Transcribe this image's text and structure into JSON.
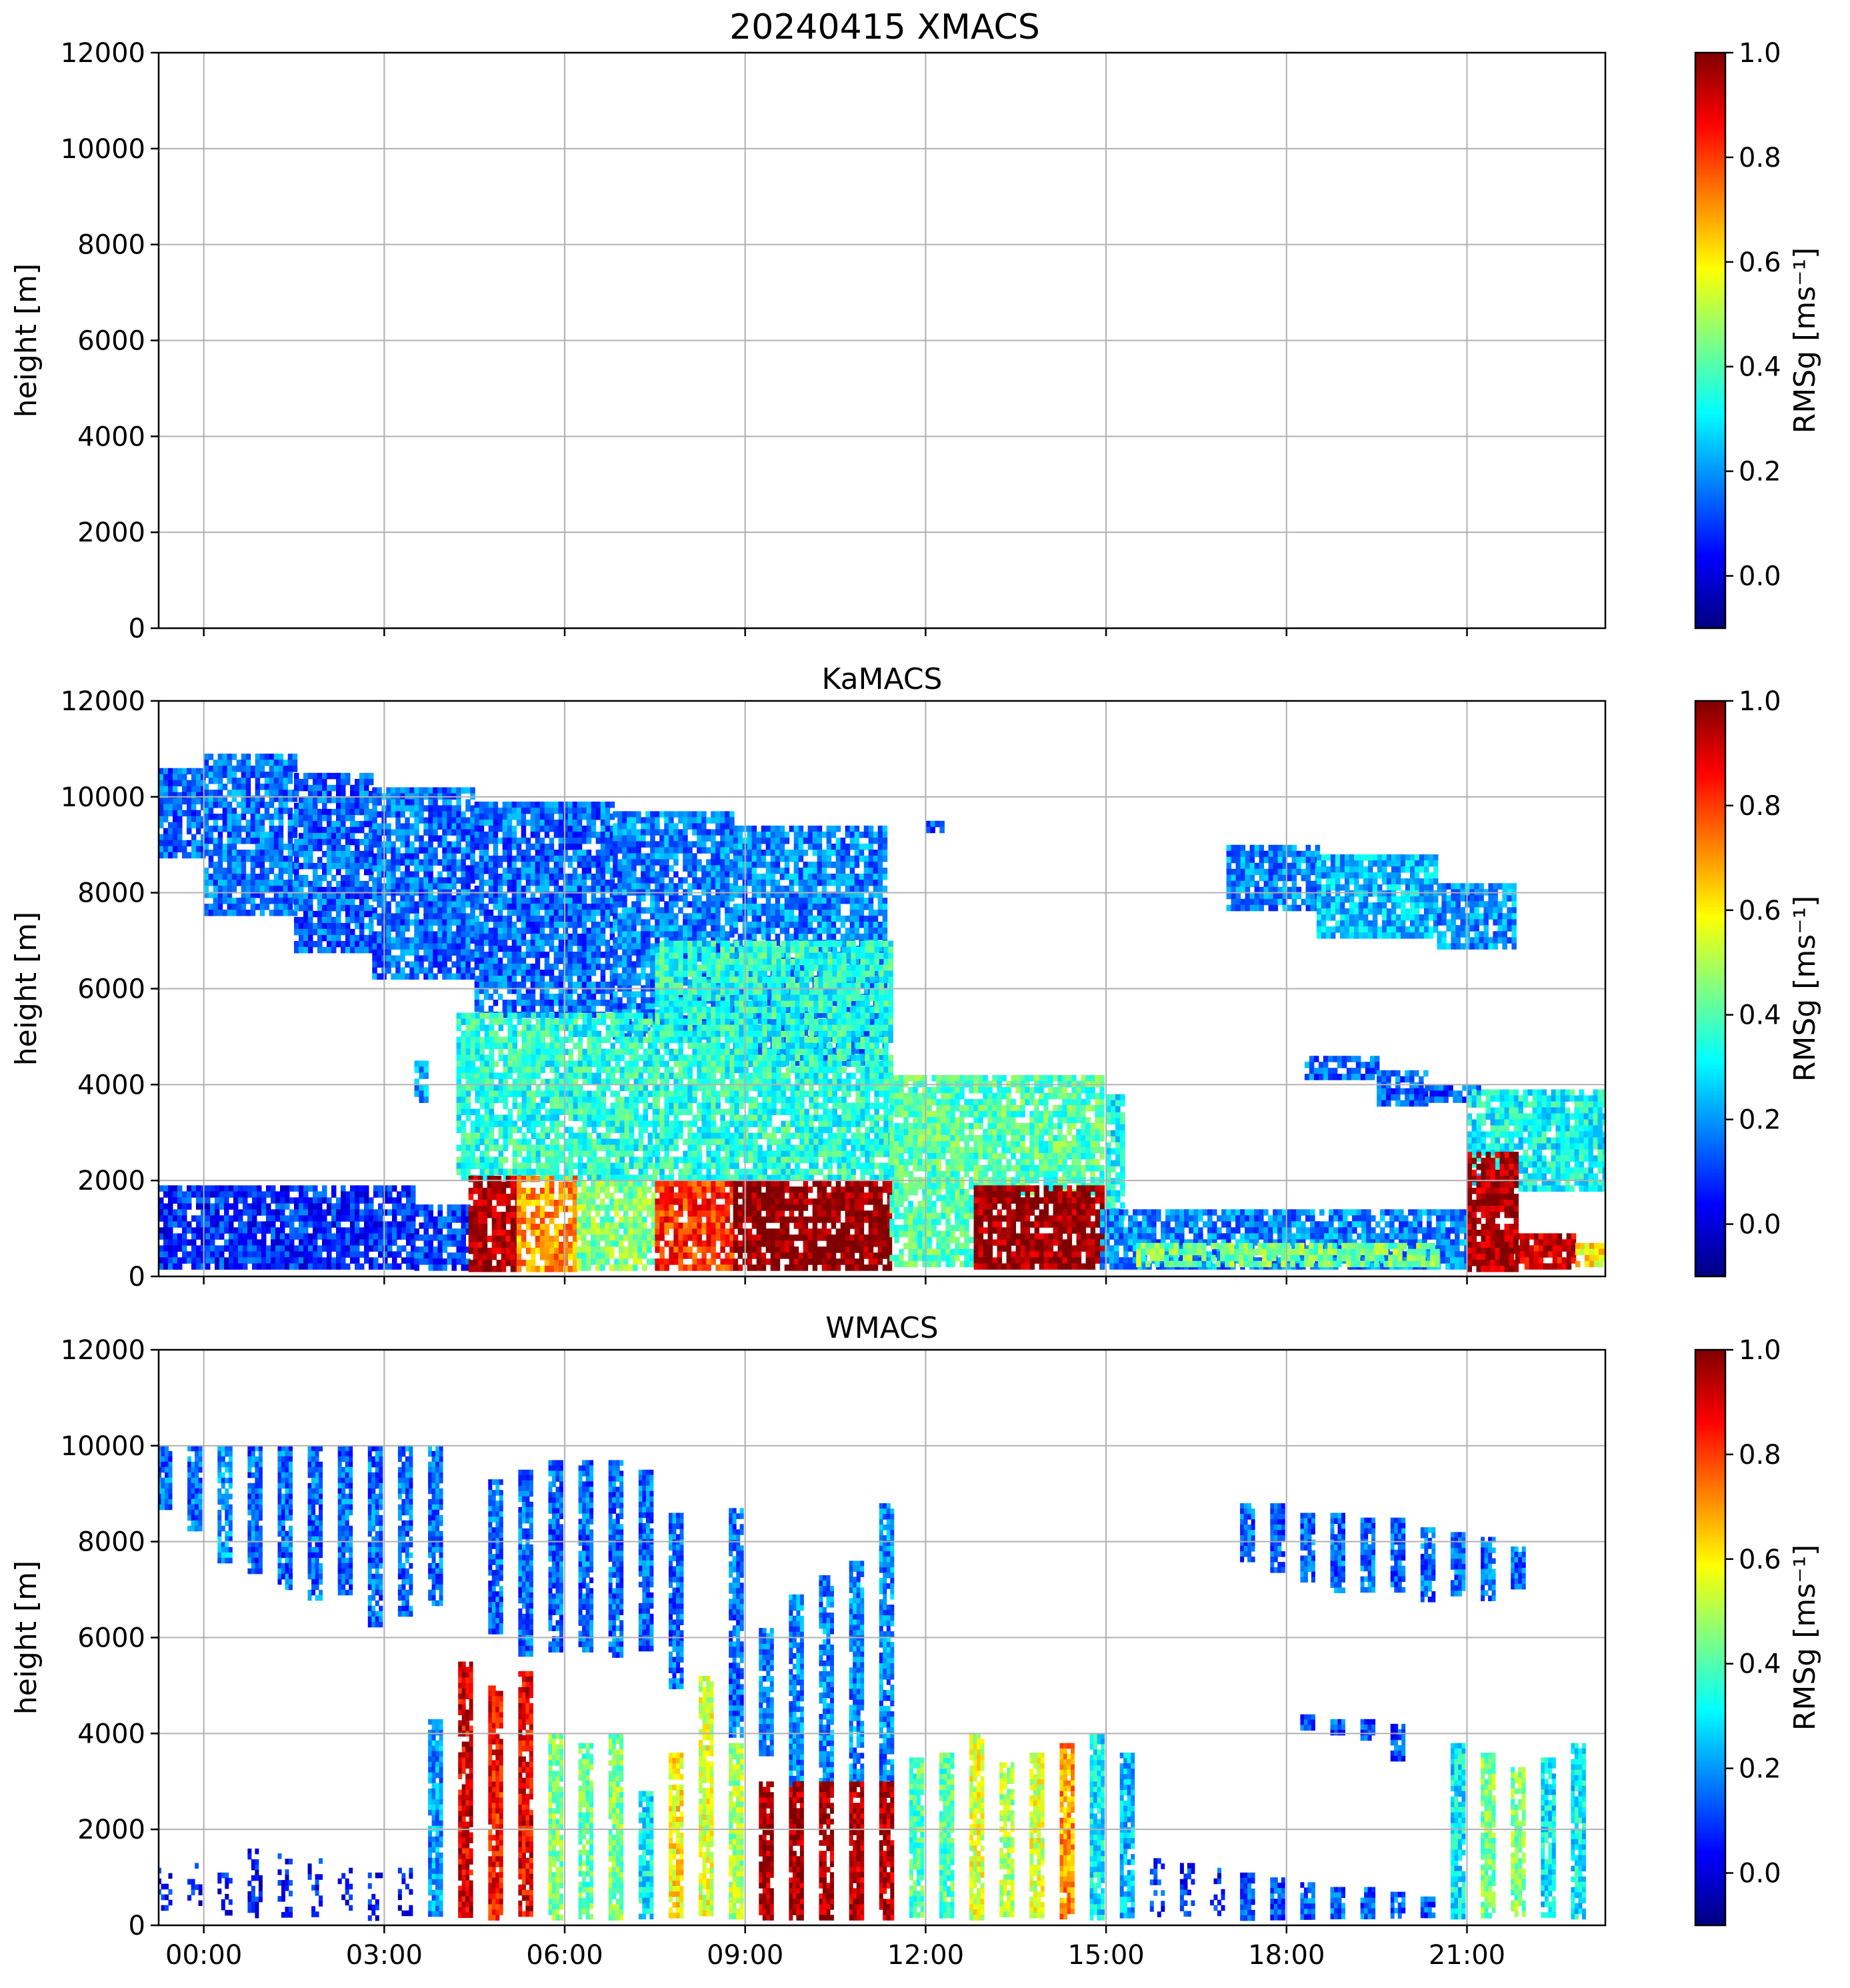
{
  "figure": {
    "title": "20240415 XMACS",
    "x_tick_labels": [
      "00:00",
      "03:00",
      "06:00",
      "09:00",
      "12:00",
      "15:00",
      "18:00",
      "21:00"
    ]
  },
  "colormap": {
    "name": "jet",
    "stops": [
      "#00007f",
      "#0000ff",
      "#0080ff",
      "#00ffff",
      "#80ff80",
      "#ffff00",
      "#ff8000",
      "#ff0000",
      "#7f0000"
    ]
  },
  "chart_data": [
    {
      "type": "heatmap",
      "title": "",
      "xlabel": "",
      "ylabel": "height [m]",
      "ylim": [
        0,
        12000
      ],
      "y_ticks": [
        0,
        2000,
        4000,
        6000,
        8000,
        10000,
        12000
      ],
      "x_ticks_hours": [
        0,
        3,
        6,
        9,
        12,
        15,
        18,
        21
      ],
      "xlim_hours": [
        -0.75,
        23.3
      ],
      "grid": true,
      "colorbar": {
        "label": "RMSg [ms⁻¹]",
        "range": [
          -0.1,
          1.0
        ],
        "ticks": [
          "0.0",
          "0.2",
          "0.4",
          "0.6",
          "0.8",
          "1.0"
        ]
      },
      "regions": []
    },
    {
      "type": "heatmap",
      "title": "KaMACS",
      "xlabel": "",
      "ylabel": "height [m]",
      "ylim": [
        0,
        12000
      ],
      "y_ticks": [
        0,
        2000,
        4000,
        6000,
        8000,
        10000,
        12000
      ],
      "x_ticks_hours": [
        0,
        3,
        6,
        9,
        12,
        15,
        18,
        21
      ],
      "xlim_hours": [
        -0.75,
        23.3
      ],
      "grid": true,
      "colorbar": {
        "label": "RMSg [ms⁻¹]",
        "range": [
          -0.1,
          1.0
        ],
        "ticks": [
          "0.0",
          "0.2",
          "0.4",
          "0.6",
          "0.8",
          "1.0"
        ]
      },
      "regions": [
        {
          "t0": -0.75,
          "t1": 0.0,
          "h0": 8800,
          "h1": 10600,
          "v": 0.14
        },
        {
          "t0": 0.0,
          "t1": 1.5,
          "h0": 7600,
          "h1": 10900,
          "v": 0.16
        },
        {
          "t0": 1.5,
          "t1": 2.8,
          "h0": 6800,
          "h1": 10500,
          "v": 0.14
        },
        {
          "t0": 2.8,
          "t1": 4.5,
          "h0": 6200,
          "h1": 10200,
          "v": 0.15
        },
        {
          "t0": 4.5,
          "t1": 6.8,
          "h0": 5500,
          "h1": 9900,
          "v": 0.15
        },
        {
          "t0": 6.8,
          "t1": 8.8,
          "h0": 5000,
          "h1": 9700,
          "v": 0.17
        },
        {
          "t0": 8.8,
          "t1": 11.3,
          "h0": 4500,
          "h1": 9400,
          "v": 0.18
        },
        {
          "t0": 12.0,
          "t1": 12.3,
          "h0": 9300,
          "h1": 9500,
          "v": 0.12
        },
        {
          "t0": 17.0,
          "t1": 18.5,
          "h0": 7700,
          "h1": 9000,
          "v": 0.18
        },
        {
          "t0": 18.5,
          "t1": 20.5,
          "h0": 7100,
          "h1": 8800,
          "v": 0.24
        },
        {
          "t0": 20.5,
          "t1": 21.8,
          "h0": 6900,
          "h1": 8200,
          "v": 0.2
        },
        {
          "t0": 18.3,
          "t1": 19.5,
          "h0": 4100,
          "h1": 4600,
          "v": 0.14
        },
        {
          "t0": 19.5,
          "t1": 20.3,
          "h0": 3600,
          "h1": 4300,
          "v": 0.14
        },
        {
          "t0": 20.3,
          "t1": 21.2,
          "h0": 3700,
          "h1": 4000,
          "v": 0.12
        },
        {
          "t0": 3.5,
          "t1": 3.7,
          "h0": 3700,
          "h1": 4500,
          "v": 0.2
        },
        {
          "t0": 4.2,
          "t1": 7.5,
          "h0": 2000,
          "h1": 5500,
          "v": 0.35
        },
        {
          "t0": 7.5,
          "t1": 11.4,
          "h0": 2000,
          "h1": 7000,
          "v": 0.35
        },
        {
          "t0": 11.4,
          "t1": 14.9,
          "h0": 1800,
          "h1": 4200,
          "v": 0.4
        },
        {
          "t0": 15.0,
          "t1": 15.3,
          "h0": 1200,
          "h1": 3800,
          "v": 0.32
        },
        {
          "t0": 21.0,
          "t1": 23.3,
          "h0": 1800,
          "h1": 3900,
          "v": 0.32
        },
        {
          "t0": -0.75,
          "t1": 3.5,
          "h0": 200,
          "h1": 1900,
          "v": 0.08
        },
        {
          "t0": 3.5,
          "t1": 4.4,
          "h0": 200,
          "h1": 1500,
          "v": 0.1
        },
        {
          "t0": 4.4,
          "t1": 5.2,
          "h0": 200,
          "h1": 2100,
          "v": 0.95
        },
        {
          "t0": 5.2,
          "t1": 6.2,
          "h0": 200,
          "h1": 2100,
          "v": 0.7
        },
        {
          "t0": 6.2,
          "t1": 7.5,
          "h0": 200,
          "h1": 2000,
          "v": 0.45
        },
        {
          "t0": 7.5,
          "t1": 8.8,
          "h0": 200,
          "h1": 2000,
          "v": 0.82
        },
        {
          "t0": 8.8,
          "t1": 11.4,
          "h0": 200,
          "h1": 2000,
          "v": 1.0
        },
        {
          "t0": 11.4,
          "t1": 12.8,
          "h0": 200,
          "h1": 1700,
          "v": 0.4
        },
        {
          "t0": 12.8,
          "t1": 14.9,
          "h0": 200,
          "h1": 1900,
          "v": 0.98
        },
        {
          "t0": 14.9,
          "t1": 21.0,
          "h0": 200,
          "h1": 1400,
          "v": 0.18
        },
        {
          "t0": 15.5,
          "t1": 20.5,
          "h0": 300,
          "h1": 700,
          "v": 0.45
        },
        {
          "t0": 21.0,
          "t1": 21.8,
          "h0": 200,
          "h1": 2600,
          "v": 0.96
        },
        {
          "t0": 21.8,
          "t1": 22.8,
          "h0": 200,
          "h1": 900,
          "v": 0.9
        },
        {
          "t0": 22.8,
          "t1": 23.3,
          "h0": 200,
          "h1": 700,
          "v": 0.6
        }
      ]
    },
    {
      "type": "heatmap",
      "title": "WMACS",
      "xlabel": "",
      "ylabel": "height [m]",
      "ylim": [
        0,
        12000
      ],
      "y_ticks": [
        0,
        2000,
        4000,
        6000,
        8000,
        10000,
        12000
      ],
      "x_ticks_hours": [
        0,
        3,
        6,
        9,
        12,
        15,
        18,
        21
      ],
      "xlim_hours": [
        -0.75,
        23.3
      ],
      "grid": true,
      "colorbar": {
        "label": "RMSg [ms⁻¹]",
        "range": [
          -0.1,
          1.0
        ],
        "ticks": [
          "0.0",
          "0.2",
          "0.4",
          "0.6",
          "0.8",
          "1.0"
        ]
      },
      "scans": [
        {
          "t": -0.65,
          "top": 10000,
          "bottom": 8700,
          "v": 0.15
        },
        {
          "t": -0.15,
          "top": 10000,
          "bottom": 8300,
          "v": 0.15
        },
        {
          "t": 0.35,
          "top": 10000,
          "bottom": 7600,
          "v": 0.2
        },
        {
          "t": 0.85,
          "top": 10000,
          "bottom": 7400,
          "v": 0.15
        },
        {
          "t": 1.35,
          "top": 10000,
          "bottom": 7100,
          "v": 0.15
        },
        {
          "t": 1.85,
          "top": 10000,
          "bottom": 6800,
          "v": 0.15
        },
        {
          "t": 2.35,
          "top": 10000,
          "bottom": 6900,
          "v": 0.15
        },
        {
          "t": 2.85,
          "top": 10000,
          "bottom": 6300,
          "v": 0.15
        },
        {
          "t": 3.35,
          "top": 10000,
          "bottom": 6500,
          "v": 0.15
        },
        {
          "t": 3.85,
          "top": 10000,
          "bottom": 6700,
          "v": 0.15
        },
        {
          "t": 4.85,
          "top": 9300,
          "bottom": 6100,
          "v": 0.15
        },
        {
          "t": 5.35,
          "top": 9500,
          "bottom": 5700,
          "v": 0.15
        },
        {
          "t": 5.85,
          "top": 9700,
          "bottom": 5800,
          "v": 0.15
        },
        {
          "t": 6.35,
          "top": 9700,
          "bottom": 5700,
          "v": 0.15
        },
        {
          "t": 6.85,
          "top": 9700,
          "bottom": 5600,
          "v": 0.15
        },
        {
          "t": 7.35,
          "top": 9500,
          "bottom": 5800,
          "v": 0.15
        },
        {
          "t": 7.85,
          "top": 8600,
          "bottom": 5000,
          "v": 0.15
        },
        {
          "t": 8.85,
          "top": 8700,
          "bottom": 4000,
          "v": 0.15
        },
        {
          "t": 9.35,
          "top": 6200,
          "bottom": 3600,
          "v": 0.18
        },
        {
          "t": 9.85,
          "top": 6900,
          "bottom": 3000,
          "v": 0.18
        },
        {
          "t": 10.35,
          "top": 7300,
          "bottom": 3000,
          "v": 0.18
        },
        {
          "t": 10.85,
          "top": 7600,
          "bottom": 3000,
          "v": 0.18
        },
        {
          "t": 11.35,
          "top": 8800,
          "bottom": 3000,
          "v": 0.18
        },
        {
          "t": 17.35,
          "top": 8800,
          "bottom": 7600,
          "v": 0.15
        },
        {
          "t": 17.85,
          "top": 8800,
          "bottom": 7400,
          "v": 0.15
        },
        {
          "t": 18.35,
          "top": 8600,
          "bottom": 7200,
          "v": 0.15
        },
        {
          "t": 18.85,
          "top": 8600,
          "bottom": 7000,
          "v": 0.15
        },
        {
          "t": 19.35,
          "top": 8500,
          "bottom": 7000,
          "v": 0.15
        },
        {
          "t": 19.85,
          "top": 8500,
          "bottom": 7000,
          "v": 0.15
        },
        {
          "t": 20.35,
          "top": 8300,
          "bottom": 6800,
          "v": 0.15
        },
        {
          "t": 20.85,
          "top": 8200,
          "bottom": 6900,
          "v": 0.15
        },
        {
          "t": 21.35,
          "top": 8100,
          "bottom": 6800,
          "v": 0.15
        },
        {
          "t": 21.85,
          "top": 7900,
          "bottom": 7100,
          "v": 0.15
        },
        {
          "t": 18.35,
          "top": 4400,
          "bottom": 4100,
          "v": 0.12
        },
        {
          "t": 18.85,
          "top": 4300,
          "bottom": 4000,
          "v": 0.12
        },
        {
          "t": 19.35,
          "top": 4300,
          "bottom": 3900,
          "v": 0.12
        },
        {
          "t": 19.85,
          "top": 4200,
          "bottom": 3500,
          "v": 0.12
        },
        {
          "t": -0.65,
          "top": 1200,
          "bottom": 200,
          "v": 0.05
        },
        {
          "t": -0.15,
          "top": 1300,
          "bottom": 200,
          "v": 0.05
        },
        {
          "t": 0.35,
          "top": 1100,
          "bottom": 200,
          "v": 0.05
        },
        {
          "t": 0.85,
          "top": 1600,
          "bottom": 200,
          "v": 0.05
        },
        {
          "t": 1.35,
          "top": 1500,
          "bottom": 200,
          "v": 0.05
        },
        {
          "t": 1.85,
          "top": 1400,
          "bottom": 200,
          "v": 0.05
        },
        {
          "t": 2.35,
          "top": 1200,
          "bottom": 200,
          "v": 0.05
        },
        {
          "t": 2.85,
          "top": 1100,
          "bottom": 200,
          "v": 0.05
        },
        {
          "t": 3.35,
          "top": 1200,
          "bottom": 200,
          "v": 0.05
        },
        {
          "t": 3.85,
          "top": 4300,
          "bottom": 200,
          "v": 0.2
        },
        {
          "t": 4.35,
          "top": 5500,
          "bottom": 200,
          "v": 0.9
        },
        {
          "t": 4.85,
          "top": 5000,
          "bottom": 200,
          "v": 0.85
        },
        {
          "t": 5.35,
          "top": 5300,
          "bottom": 200,
          "v": 0.88
        },
        {
          "t": 5.85,
          "top": 4000,
          "bottom": 200,
          "v": 0.45
        },
        {
          "t": 6.35,
          "top": 3800,
          "bottom": 200,
          "v": 0.42
        },
        {
          "t": 6.85,
          "top": 4000,
          "bottom": 200,
          "v": 0.45
        },
        {
          "t": 7.35,
          "top": 2800,
          "bottom": 200,
          "v": 0.3
        },
        {
          "t": 7.85,
          "top": 3600,
          "bottom": 200,
          "v": 0.6
        },
        {
          "t": 8.35,
          "top": 5200,
          "bottom": 200,
          "v": 0.55
        },
        {
          "t": 8.85,
          "top": 3800,
          "bottom": 200,
          "v": 0.5
        },
        {
          "t": 9.35,
          "top": 3000,
          "bottom": 200,
          "v": 0.95
        },
        {
          "t": 9.85,
          "top": 3000,
          "bottom": 200,
          "v": 0.96
        },
        {
          "t": 10.35,
          "top": 3000,
          "bottom": 200,
          "v": 0.96
        },
        {
          "t": 10.85,
          "top": 3000,
          "bottom": 200,
          "v": 0.95
        },
        {
          "t": 11.35,
          "top": 3000,
          "bottom": 200,
          "v": 0.95
        },
        {
          "t": 11.85,
          "top": 3500,
          "bottom": 200,
          "v": 0.4
        },
        {
          "t": 12.35,
          "top": 3600,
          "bottom": 200,
          "v": 0.4
        },
        {
          "t": 12.85,
          "top": 4000,
          "bottom": 200,
          "v": 0.55
        },
        {
          "t": 13.35,
          "top": 3400,
          "bottom": 200,
          "v": 0.5
        },
        {
          "t": 13.85,
          "top": 3600,
          "bottom": 200,
          "v": 0.55
        },
        {
          "t": 14.35,
          "top": 3800,
          "bottom": 200,
          "v": 0.7
        },
        {
          "t": 14.85,
          "top": 4000,
          "bottom": 200,
          "v": 0.3
        },
        {
          "t": 15.35,
          "top": 3600,
          "bottom": 200,
          "v": 0.25
        },
        {
          "t": 15.85,
          "top": 1400,
          "bottom": 200,
          "v": 0.08
        },
        {
          "t": 16.35,
          "top": 1300,
          "bottom": 200,
          "v": 0.08
        },
        {
          "t": 16.85,
          "top": 1200,
          "bottom": 200,
          "v": 0.08
        },
        {
          "t": 17.35,
          "top": 1100,
          "bottom": 200,
          "v": 0.12
        },
        {
          "t": 17.85,
          "top": 1000,
          "bottom": 200,
          "v": 0.12
        },
        {
          "t": 18.35,
          "top": 900,
          "bottom": 200,
          "v": 0.15
        },
        {
          "t": 18.85,
          "top": 800,
          "bottom": 200,
          "v": 0.15
        },
        {
          "t": 19.35,
          "top": 800,
          "bottom": 200,
          "v": 0.15
        },
        {
          "t": 19.85,
          "top": 700,
          "bottom": 200,
          "v": 0.15
        },
        {
          "t": 20.35,
          "top": 600,
          "bottom": 200,
          "v": 0.12
        },
        {
          "t": 20.85,
          "top": 3800,
          "bottom": 200,
          "v": 0.3
        },
        {
          "t": 21.35,
          "top": 3600,
          "bottom": 200,
          "v": 0.45
        },
        {
          "t": 21.85,
          "top": 3300,
          "bottom": 200,
          "v": 0.45
        },
        {
          "t": 22.35,
          "top": 3500,
          "bottom": 200,
          "v": 0.3
        },
        {
          "t": 22.85,
          "top": 3800,
          "bottom": 200,
          "v": 0.3
        }
      ]
    }
  ]
}
